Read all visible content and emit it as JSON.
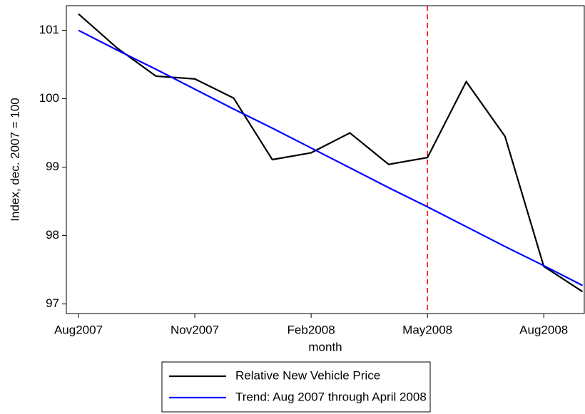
{
  "chart_data": {
    "type": "line",
    "x_label": "month",
    "y_label": "Index, dec. 2007 = 100",
    "categories": [
      "Aug2007",
      null,
      null,
      "Nov2007",
      null,
      null,
      "Feb2008",
      null,
      null,
      "May2008",
      null,
      null,
      "Aug2008",
      null
    ],
    "series": [
      {
        "name": "Relative New Vehicle Price",
        "color": "#000000",
        "values": [
          101.24,
          100.74,
          100.33,
          100.29,
          100.01,
          99.11,
          99.21,
          99.5,
          99.04,
          99.14,
          100.25,
          99.45,
          97.55,
          97.18
        ]
      },
      {
        "name": "Trend: Aug 2007 through April 2008",
        "color": "#0000ff",
        "values": [
          101.0,
          100.71,
          100.43,
          100.14,
          99.85,
          99.57,
          99.28,
          98.99,
          98.7,
          98.42,
          98.13,
          97.84,
          97.56,
          97.27
        ]
      }
    ],
    "ylim": [
      96.86,
      101.36
    ],
    "yticks": [
      97,
      98,
      99,
      100,
      101
    ],
    "vline": {
      "x": "May2008",
      "color": "#ff0000"
    },
    "legend": "bottom"
  }
}
